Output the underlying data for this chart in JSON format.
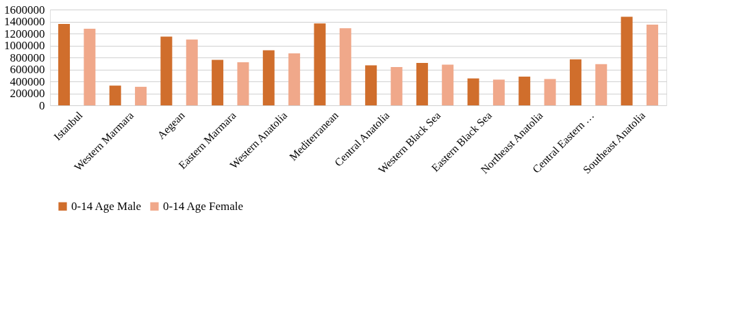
{
  "chart_data": {
    "type": "bar",
    "categories": [
      "Istanbul",
      "Western Marmara",
      "Aegean",
      "Eastern Marmara",
      "Western Anatolia",
      "Mediterranean",
      "Central Anatolia",
      "Western Black Sea",
      "Eastern Black Sea",
      "Northeast Anatolia",
      "Central Eastern …",
      "Southeast Anatolia"
    ],
    "series": [
      {
        "name": "0-14 Age Male",
        "color": "#d06e2c",
        "values": [
          1360000,
          330000,
          1150000,
          760000,
          920000,
          1370000,
          670000,
          710000,
          450000,
          480000,
          770000,
          1480000
        ]
      },
      {
        "name": "0-14 Age Female",
        "color": "#f0a88a",
        "values": [
          1280000,
          310000,
          1100000,
          720000,
          870000,
          1290000,
          640000,
          680000,
          430000,
          440000,
          690000,
          1350000
        ]
      }
    ],
    "ylim": [
      0,
      1600000
    ],
    "yticks": [
      0,
      200000,
      400000,
      600000,
      800000,
      1000000,
      1200000,
      1400000,
      1600000
    ],
    "grid": "y",
    "legend": "bottom"
  }
}
